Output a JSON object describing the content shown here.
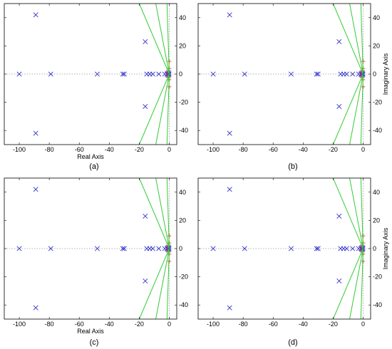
{
  "chart_data": [
    {
      "type": "scatter",
      "panel_label": "(a)",
      "xlabel": "Real Axis",
      "ylabel": "",
      "xlim": [
        -110,
        5
      ],
      "ylim": [
        -50,
        50
      ],
      "xticks": [
        -100,
        -80,
        -60,
        -40,
        -20,
        0
      ],
      "yticks": [
        -40,
        -20,
        0,
        20,
        40
      ],
      "yaxis_side": "right",
      "grid": false,
      "poles_color": "#3333cc",
      "zeros_color": "#e8453c",
      "loci_color": "#33cc33",
      "reference_line_color": "#999999",
      "series": [
        {
          "marker": "x",
          "points": [
            [
              -89,
              42
            ],
            [
              -89,
              -42
            ],
            [
              -100,
              0
            ],
            [
              -79,
              0
            ],
            [
              -48,
              0
            ],
            [
              -31,
              0
            ],
            [
              -30,
              0
            ],
            [
              -16,
              23
            ],
            [
              -16,
              -23
            ],
            [
              -15,
              0
            ],
            [
              -13,
              0
            ],
            [
              -11,
              0
            ],
            [
              -7,
              0
            ],
            [
              -3,
              0
            ],
            [
              -1.5,
              0
            ],
            [
              -0.8,
              0
            ],
            [
              -0.4,
              0
            ],
            [
              -0.1,
              0
            ],
            [
              -1,
              0.5
            ],
            [
              -1,
              -0.5
            ],
            [
              -0.5,
              1
            ],
            [
              -0.5,
              -1
            ]
          ]
        },
        {
          "marker": "+",
          "points": [
            [
              0,
              9
            ],
            [
              0,
              -9
            ],
            [
              0,
              4
            ],
            [
              0,
              -4
            ],
            [
              -1,
              1.5
            ],
            [
              -1,
              -1.5
            ]
          ]
        },
        {
          "marker": "line",
          "lines": [
            [
              [
                0,
                0
              ],
              [
                -20,
                50
              ]
            ],
            [
              [
                0,
                0
              ],
              [
                -20,
                -50
              ]
            ],
            [
              [
                0,
                0
              ],
              [
                -9,
                50
              ]
            ],
            [
              [
                0,
                0
              ],
              [
                -9,
                -50
              ]
            ],
            [
              [
                0,
                0
              ],
              [
                -1.5,
                50
              ]
            ],
            [
              [
                0,
                0
              ],
              [
                -1.5,
                -50
              ]
            ]
          ]
        }
      ]
    },
    {
      "type": "scatter",
      "panel_label": "(b)",
      "xlabel": "",
      "ylabel": "Imaginary Axis",
      "xlim": [
        -110,
        5
      ],
      "ylim": [
        -50,
        50
      ],
      "xticks": [
        -100,
        -80,
        -60,
        -40,
        -20,
        0
      ],
      "yticks": [
        -40,
        -20,
        0,
        20,
        40
      ],
      "yaxis_side": "right",
      "grid": false,
      "poles_color": "#3333cc",
      "zeros_color": "#e8453c",
      "loci_color": "#33cc33",
      "reference_line_color": "#999999",
      "series": [
        {
          "marker": "x",
          "points": [
            [
              -89,
              42
            ],
            [
              -89,
              -42
            ],
            [
              -100,
              0
            ],
            [
              -79,
              0
            ],
            [
              -48,
              0
            ],
            [
              -31,
              0
            ],
            [
              -30,
              0
            ],
            [
              -16,
              23
            ],
            [
              -16,
              -23
            ],
            [
              -15,
              0
            ],
            [
              -13,
              0
            ],
            [
              -11,
              0
            ],
            [
              -7,
              0
            ],
            [
              -3,
              0
            ],
            [
              -1.5,
              0
            ],
            [
              -0.8,
              0
            ],
            [
              -0.4,
              0
            ],
            [
              -0.1,
              0
            ],
            [
              -1,
              0.5
            ],
            [
              -1,
              -0.5
            ],
            [
              -0.5,
              1
            ],
            [
              -0.5,
              -1
            ]
          ]
        },
        {
          "marker": "+",
          "points": [
            [
              0,
              9
            ],
            [
              0,
              -9
            ],
            [
              0,
              4
            ],
            [
              0,
              -4
            ],
            [
              -1,
              1.5
            ],
            [
              -1,
              -1.5
            ]
          ]
        },
        {
          "marker": "line",
          "lines": [
            [
              [
                0,
                0
              ],
              [
                -20,
                50
              ]
            ],
            [
              [
                0,
                0
              ],
              [
                -20,
                -50
              ]
            ],
            [
              [
                0,
                0
              ],
              [
                -9,
                50
              ]
            ],
            [
              [
                0,
                0
              ],
              [
                -9,
                -50
              ]
            ],
            [
              [
                0,
                0
              ],
              [
                -1.5,
                50
              ]
            ],
            [
              [
                0,
                0
              ],
              [
                -1.5,
                -50
              ]
            ]
          ]
        }
      ]
    },
    {
      "type": "scatter",
      "panel_label": "(c)",
      "xlabel": "Real Axis",
      "ylabel": "",
      "xlim": [
        -110,
        5
      ],
      "ylim": [
        -50,
        50
      ],
      "xticks": [
        -100,
        -80,
        -60,
        -40,
        -20,
        0
      ],
      "yticks": [
        -40,
        -20,
        0,
        20,
        40
      ],
      "yaxis_side": "right",
      "grid": false,
      "poles_color": "#3333cc",
      "zeros_color": "#e8453c",
      "loci_color": "#33cc33",
      "reference_line_color": "#999999",
      "series": [
        {
          "marker": "x",
          "points": [
            [
              -89,
              42
            ],
            [
              -89,
              -42
            ],
            [
              -100,
              0
            ],
            [
              -79,
              0
            ],
            [
              -48,
              0
            ],
            [
              -31,
              0
            ],
            [
              -30,
              0
            ],
            [
              -16,
              23
            ],
            [
              -16,
              -23
            ],
            [
              -15,
              0
            ],
            [
              -13,
              0
            ],
            [
              -11,
              0
            ],
            [
              -7,
              0
            ],
            [
              -3,
              0
            ],
            [
              -1.5,
              0
            ],
            [
              -0.8,
              0
            ],
            [
              -0.4,
              0
            ],
            [
              -0.1,
              0
            ],
            [
              -1,
              0.5
            ],
            [
              -1,
              -0.5
            ],
            [
              -0.5,
              1
            ],
            [
              -0.5,
              -1
            ]
          ]
        },
        {
          "marker": "+",
          "points": [
            [
              0,
              9
            ],
            [
              0,
              -9
            ],
            [
              0,
              4
            ],
            [
              0,
              -4
            ],
            [
              -1,
              1.5
            ],
            [
              -1,
              -1.5
            ]
          ]
        },
        {
          "marker": "line",
          "lines": [
            [
              [
                0,
                0
              ],
              [
                -20,
                50
              ]
            ],
            [
              [
                0,
                0
              ],
              [
                -20,
                -50
              ]
            ],
            [
              [
                0,
                0
              ],
              [
                -9,
                50
              ]
            ],
            [
              [
                0,
                0
              ],
              [
                -9,
                -50
              ]
            ],
            [
              [
                0,
                0
              ],
              [
                -1.5,
                50
              ]
            ],
            [
              [
                0,
                0
              ],
              [
                -1.5,
                -50
              ]
            ]
          ]
        }
      ]
    },
    {
      "type": "scatter",
      "panel_label": "(d)",
      "xlabel": "",
      "ylabel": "Imaginary Axis",
      "xlim": [
        -110,
        5
      ],
      "ylim": [
        -50,
        50
      ],
      "xticks": [
        -100,
        -80,
        -60,
        -40,
        -20,
        0
      ],
      "yticks": [
        -40,
        -20,
        0,
        20,
        40
      ],
      "yaxis_side": "right",
      "grid": false,
      "poles_color": "#3333cc",
      "zeros_color": "#e8453c",
      "loci_color": "#33cc33",
      "reference_line_color": "#999999",
      "series": [
        {
          "marker": "x",
          "points": [
            [
              -89,
              42
            ],
            [
              -89,
              -42
            ],
            [
              -100,
              0
            ],
            [
              -79,
              0
            ],
            [
              -48,
              0
            ],
            [
              -31,
              0
            ],
            [
              -30,
              0
            ],
            [
              -16,
              23
            ],
            [
              -16,
              -23
            ],
            [
              -15,
              0
            ],
            [
              -13,
              0
            ],
            [
              -11,
              0
            ],
            [
              -7,
              0
            ],
            [
              -3,
              0
            ],
            [
              -1.5,
              0
            ],
            [
              -0.8,
              0
            ],
            [
              -0.4,
              0
            ],
            [
              -0.1,
              0
            ],
            [
              -1,
              0.5
            ],
            [
              -1,
              -0.5
            ],
            [
              -0.5,
              1
            ],
            [
              -0.5,
              -1
            ]
          ]
        },
        {
          "marker": "+",
          "points": [
            [
              0,
              9
            ],
            [
              0,
              -9
            ],
            [
              0,
              4
            ],
            [
              0,
              -4
            ],
            [
              -1,
              1.5
            ],
            [
              -1,
              -1.5
            ]
          ]
        },
        {
          "marker": "line",
          "lines": [
            [
              [
                0,
                0
              ],
              [
                -20,
                50
              ]
            ],
            [
              [
                0,
                0
              ],
              [
                -20,
                -50
              ]
            ],
            [
              [
                0,
                0
              ],
              [
                -9,
                50
              ]
            ],
            [
              [
                0,
                0
              ],
              [
                -9,
                -50
              ]
            ],
            [
              [
                0,
                0
              ],
              [
                -1.5,
                50
              ]
            ],
            [
              [
                0,
                0
              ],
              [
                -1.5,
                -50
              ]
            ]
          ]
        }
      ]
    }
  ]
}
